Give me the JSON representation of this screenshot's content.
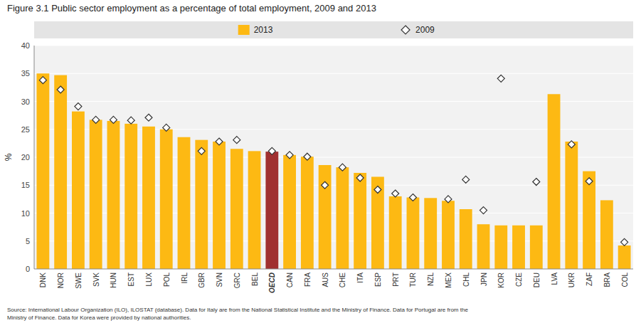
{
  "chart_data": {
    "type": "bar",
    "title": "Figure  3.1  Public sector employment as a percentage of total employment, 2009 and 2013",
    "y_label": "%",
    "categories": [
      "DNK",
      "NOR",
      "SWE",
      "SVK",
      "HUN",
      "EST",
      "LUX",
      "POL",
      "IRL",
      "GBR",
      "SVN",
      "GRC",
      "BEL",
      "OECD",
      "CAN",
      "FRA",
      "AUS",
      "CHE",
      "ITA",
      "ESP",
      "PRT",
      "TUR",
      "NZL",
      "MEX",
      "CHL",
      "JPN",
      "KOR",
      "CZE",
      "DEU",
      "LVA",
      "UKR",
      "ZAF",
      "BRA",
      "COL"
    ],
    "series": [
      {
        "name": "2013",
        "type": "bar",
        "colors": [
          "#FDB913",
          "#FDB913",
          "#FDB913",
          "#FDB913",
          "#FDB913",
          "#FDB913",
          "#FDB913",
          "#FDB913",
          "#FDB913",
          "#FDB913",
          "#FDB913",
          "#FDB913",
          "#FDB913",
          "#A03030",
          "#FDB913",
          "#FDB913",
          "#FDB913",
          "#FDB913",
          "#FDB913",
          "#FDB913",
          "#FDB913",
          "#FDB913",
          "#FDB913",
          "#FDB913",
          "#FDB913",
          "#FDB913",
          "#FDB913",
          "#FDB913",
          "#FDB913",
          "#FDB913",
          "#FDB913",
          "#FDB913",
          "#FDB913",
          "#FDB913"
        ],
        "values": [
          35.0,
          34.7,
          28.2,
          26.7,
          26.5,
          26.0,
          25.5,
          25.0,
          23.6,
          23.1,
          22.8,
          21.5,
          21.1,
          21.0,
          20.4,
          20.1,
          18.6,
          18.2,
          17.2,
          16.5,
          13.0,
          12.8,
          12.7,
          12.2,
          10.7,
          8.0,
          7.8,
          7.8,
          7.8,
          31.3,
          22.8,
          17.5,
          12.3,
          4.2
        ]
      },
      {
        "name": "2009",
        "type": "scatter",
        "marker": "diamond",
        "color": "#333333",
        "values": [
          33.8,
          32.1,
          29.1,
          26.7,
          26.7,
          26.6,
          27.1,
          25.3,
          null,
          21.1,
          22.8,
          23.1,
          null,
          21.1,
          20.4,
          20.1,
          15.0,
          18.2,
          16.3,
          14.2,
          13.5,
          12.8,
          null,
          12.5,
          16.0,
          10.5,
          34.1,
          null,
          15.6,
          null,
          22.3,
          15.7,
          null,
          4.8
        ]
      }
    ],
    "ylim": [
      0,
      40
    ],
    "yticks": [
      0,
      5,
      10,
      15,
      20,
      25,
      30,
      35,
      40
    ],
    "grid": true,
    "legend": "top",
    "annotations": [
      "Source: International Labour Organization (ILO), ILOSTAT (database). Data for Italy are from the National Statistical Institute and the Ministry of Finance. Data for Portugal are from the\nMinistry of Finance. Data for Korea were provided by national authorities."
    ]
  }
}
